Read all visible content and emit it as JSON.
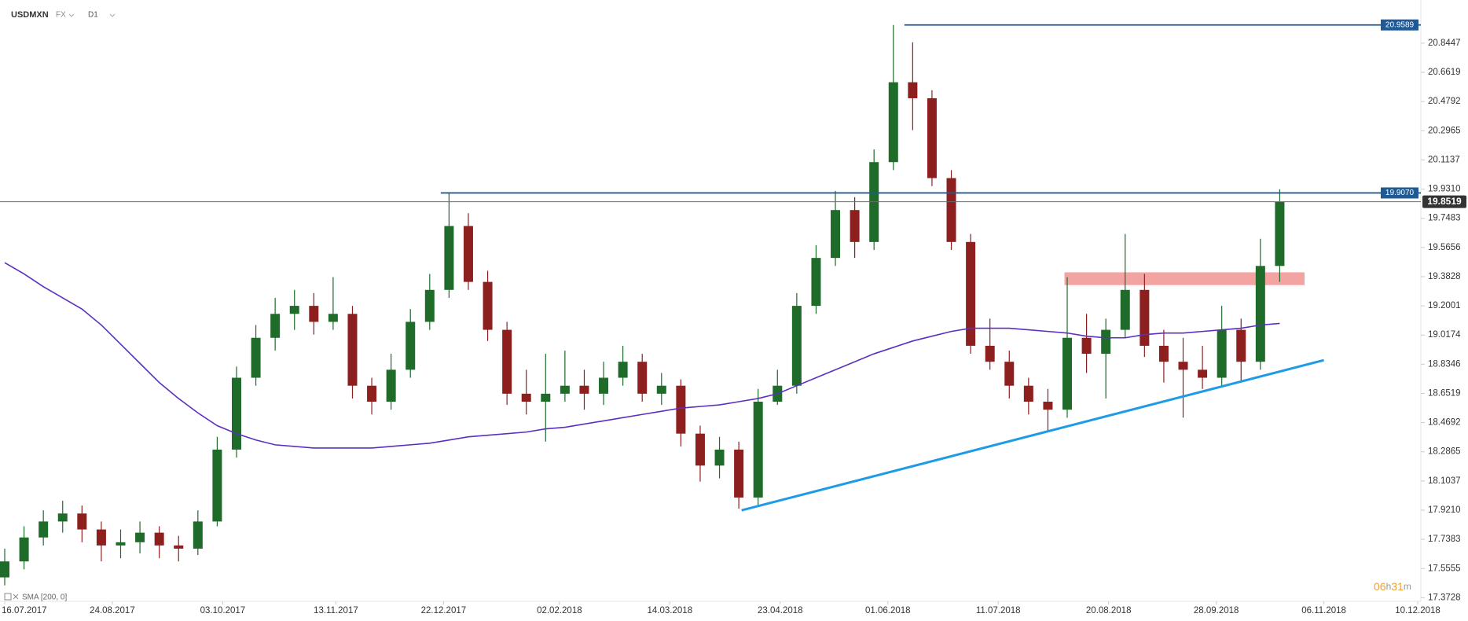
{
  "chart_data": {
    "type": "candlestick",
    "symbol": "USDMXN",
    "market": "FX",
    "timeframe": "D1",
    "x": [
      "16.07.2017",
      "23.07.2017",
      "30.07.2017",
      "06.08.2017",
      "13.08.2017",
      "20.08.2017",
      "27.08.2017",
      "03.09.2017",
      "10.09.2017",
      "17.09.2017",
      "24.09.2017",
      "01.10.2017",
      "08.10.2017",
      "15.10.2017",
      "22.10.2017",
      "29.10.2017",
      "05.11.2017",
      "12.11.2017",
      "19.11.2017",
      "26.11.2017",
      "03.12.2017",
      "10.12.2017",
      "17.12.2017",
      "24.12.2017",
      "31.12.2017",
      "07.01.2018",
      "14.01.2018",
      "21.01.2018",
      "28.01.2018",
      "04.02.2018",
      "11.02.2018",
      "18.02.2018",
      "25.02.2018",
      "04.03.2018",
      "11.03.2018",
      "18.03.2018",
      "25.03.2018",
      "01.04.2018",
      "08.04.2018",
      "15.04.2018",
      "22.04.2018",
      "29.04.2018",
      "06.05.2018",
      "13.05.2018",
      "20.05.2018",
      "27.05.2018",
      "03.06.2018",
      "10.06.2018",
      "17.06.2018",
      "24.06.2018",
      "01.07.2018",
      "08.07.2018",
      "15.07.2018",
      "22.07.2018",
      "29.07.2018",
      "05.08.2018",
      "12.08.2018",
      "19.08.2018",
      "26.08.2018",
      "02.09.2018",
      "09.09.2018",
      "16.09.2018",
      "23.09.2018",
      "30.09.2018",
      "07.10.2018",
      "14.10.2018",
      "21.10.2018"
    ],
    "open": [
      17.5,
      17.6,
      17.75,
      17.85,
      17.9,
      17.8,
      17.7,
      17.72,
      17.78,
      17.7,
      17.68,
      17.85,
      18.3,
      18.75,
      19.0,
      19.15,
      19.2,
      19.1,
      19.15,
      18.7,
      18.6,
      18.8,
      19.1,
      19.3,
      19.7,
      19.35,
      19.05,
      18.65,
      18.6,
      18.65,
      18.7,
      18.65,
      18.75,
      18.85,
      18.65,
      18.7,
      18.4,
      18.2,
      18.3,
      18.0,
      18.6,
      18.7,
      19.2,
      19.5,
      19.8,
      19.6,
      20.1,
      20.6,
      20.5,
      20.0,
      19.6,
      18.95,
      18.85,
      18.7,
      18.6,
      18.55,
      19.0,
      18.9,
      19.05,
      19.3,
      18.95,
      18.85,
      18.8,
      18.75,
      19.05,
      18.85,
      19.45
    ],
    "high": [
      17.68,
      17.82,
      17.92,
      17.98,
      17.95,
      17.85,
      17.8,
      17.85,
      17.82,
      17.76,
      17.92,
      18.38,
      18.82,
      19.08,
      19.25,
      19.3,
      19.28,
      19.38,
      19.2,
      18.75,
      18.9,
      19.18,
      19.4,
      19.907,
      19.78,
      19.42,
      19.1,
      18.8,
      18.9,
      18.92,
      18.8,
      18.85,
      18.95,
      18.9,
      18.78,
      18.74,
      18.45,
      18.38,
      18.35,
      18.68,
      18.8,
      19.28,
      19.58,
      19.92,
      19.88,
      20.18,
      20.9589,
      20.85,
      20.55,
      20.05,
      19.65,
      19.12,
      18.92,
      18.75,
      18.68,
      19.38,
      19.15,
      19.12,
      19.65,
      19.4,
      19.05,
      19.0,
      18.95,
      19.2,
      19.12,
      19.62,
      19.93
    ],
    "low": [
      17.45,
      17.55,
      17.7,
      17.78,
      17.72,
      17.6,
      17.62,
      17.65,
      17.62,
      17.6,
      17.64,
      17.82,
      18.25,
      18.7,
      18.92,
      19.05,
      19.02,
      19.05,
      18.62,
      18.52,
      18.55,
      18.75,
      19.05,
      19.25,
      19.3,
      18.98,
      18.58,
      18.52,
      18.35,
      18.6,
      18.55,
      18.58,
      18.7,
      18.6,
      18.58,
      18.32,
      18.1,
      18.12,
      17.93,
      17.95,
      18.58,
      18.65,
      19.15,
      19.45,
      19.5,
      19.55,
      20.05,
      20.3,
      19.95,
      19.55,
      18.9,
      18.8,
      18.62,
      18.52,
      18.42,
      18.5,
      18.78,
      18.62,
      19.0,
      18.88,
      18.72,
      18.5,
      18.68,
      18.7,
      18.72,
      18.8,
      19.35
    ],
    "close": [
      17.6,
      17.75,
      17.85,
      17.9,
      17.8,
      17.7,
      17.72,
      17.78,
      17.7,
      17.68,
      17.85,
      18.3,
      18.75,
      19.0,
      19.15,
      19.2,
      19.1,
      19.15,
      18.7,
      18.6,
      18.8,
      19.1,
      19.3,
      19.7,
      19.35,
      19.05,
      18.65,
      18.6,
      18.65,
      18.7,
      18.65,
      18.75,
      18.85,
      18.65,
      18.7,
      18.4,
      18.2,
      18.3,
      18.0,
      18.6,
      18.7,
      19.2,
      19.5,
      19.8,
      19.6,
      20.1,
      20.6,
      20.5,
      20.0,
      19.6,
      18.95,
      18.85,
      18.7,
      18.6,
      18.55,
      19.0,
      18.9,
      19.05,
      19.3,
      18.95,
      18.85,
      18.8,
      18.75,
      19.05,
      18.85,
      19.45,
      19.8519
    ],
    "up_color": "#1e6b2a",
    "down_color": "#8e1f1f",
    "sma": {
      "name": "SMA [200, 0]",
      "color": "#5b2fbf",
      "values": [
        19.47,
        19.4,
        19.32,
        19.25,
        19.18,
        19.08,
        18.96,
        18.84,
        18.72,
        18.62,
        18.53,
        18.45,
        18.4,
        18.36,
        18.33,
        18.32,
        18.31,
        18.31,
        18.31,
        18.31,
        18.32,
        18.33,
        18.34,
        18.36,
        18.38,
        18.39,
        18.4,
        18.41,
        18.43,
        18.44,
        18.46,
        18.48,
        18.5,
        18.52,
        18.54,
        18.56,
        18.57,
        18.58,
        18.6,
        18.62,
        18.65,
        18.7,
        18.75,
        18.8,
        18.85,
        18.9,
        18.94,
        18.98,
        19.01,
        19.04,
        19.06,
        19.06,
        19.06,
        19.05,
        19.04,
        19.03,
        19.01,
        19.0,
        19.0,
        19.02,
        19.03,
        19.03,
        19.04,
        19.05,
        19.06,
        19.08,
        19.09
      ]
    },
    "trendline": {
      "x": [
        "09.04.2018",
        "06.11.2018"
      ],
      "values": [
        17.92,
        18.86
      ],
      "color": "#1e9be6"
    },
    "zones": [
      {
        "x": [
          "04.08.2018",
          "30.10.2018"
        ],
        "y": [
          19.33,
          19.41
        ],
        "color": "#f4a3a3"
      }
    ],
    "levels": [
      {
        "value": 20.9589,
        "start": "07.06.2018",
        "color": "#1e5a96"
      },
      {
        "value": 19.907,
        "label": "19.9070",
        "start": "21.12.2017",
        "color": "#1e5a96"
      }
    ],
    "price_line": {
      "value": 19.8519,
      "color": "#333333"
    },
    "xlim": [
      "16.07.2017",
      "10.12.2018"
    ],
    "ylim": [
      17.35,
      21.115
    ],
    "xticks": [
      "16.07.2017",
      "24.08.2017",
      "03.10.2017",
      "13.11.2017",
      "22.12.2017",
      "02.02.2018",
      "14.03.2018",
      "23.04.2018",
      "01.06.2018",
      "11.07.2018",
      "20.08.2018",
      "28.09.2018",
      "06.11.2018",
      "10.12.2018"
    ],
    "yticks": [
      17.3728,
      17.5555,
      17.7383,
      {
        "value": 17.921,
        "label": "17.9210"
      },
      18.1037,
      18.2865,
      18.4692,
      18.6519,
      18.8346,
      19.0174,
      19.2001,
      19.3828,
      19.5656,
      19.7483,
      {
        "value": 19.931,
        "label": "19.9310"
      },
      20.1137,
      20.2965,
      20.4792,
      20.6619,
      20.8447
    ],
    "timer": [
      "06",
      "h",
      "31",
      "m"
    ]
  }
}
